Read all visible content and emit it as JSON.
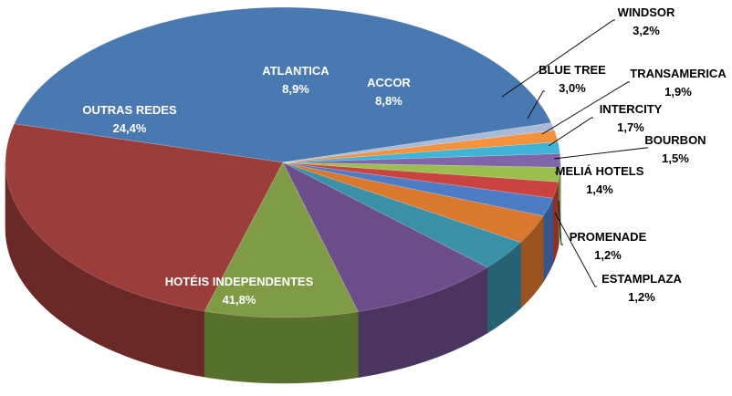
{
  "chart_data": {
    "type": "pie",
    "style": "3d-pie",
    "title": "",
    "slices": [
      {
        "label": "HOTÉIS INDEPENDENTES",
        "value_label": "41,8%",
        "value": 41.8,
        "color": "#4A78B0",
        "side": "#2C4A70",
        "label_pos": "inside"
      },
      {
        "label": "OUTRAS REDES",
        "value_label": "24,4%",
        "value": 24.4,
        "color": "#9B3D3A",
        "side": "#6A2927",
        "label_pos": "inside"
      },
      {
        "label": "ATLANTICA",
        "value_label": "8,9%",
        "value": 8.9,
        "color": "#7F9B45",
        "side": "#57702E",
        "label_pos": "inside"
      },
      {
        "label": "ACCOR",
        "value_label": "8,8%",
        "value": 8.8,
        "color": "#6B4E8A",
        "side": "#4A3561",
        "label_pos": "inside"
      },
      {
        "label": "WINDSOR",
        "value_label": "3,2%",
        "value": 3.2,
        "color": "#3A90A6",
        "side": "#276274",
        "label_pos": "outside"
      },
      {
        "label": "BLUE TREE",
        "value_label": "3,0%",
        "value": 3.0,
        "color": "#D9782F",
        "side": "#9A5320",
        "label_pos": "outside"
      },
      {
        "label": "TRANSAMERICA",
        "value_label": "1,9%",
        "value": 1.9,
        "color": "#4D7CC4",
        "side": "#34568A",
        "label_pos": "outside"
      },
      {
        "label": "INTERCITY",
        "value_label": "1,7%",
        "value": 1.7,
        "color": "#C94440",
        "side": "#8E2F2C",
        "label_pos": "outside"
      },
      {
        "label": "BOURBON",
        "value_label": "1,5%",
        "value": 1.5,
        "color": "#9BBE4F",
        "side": "#6E8A36",
        "label_pos": "outside"
      },
      {
        "label": "MELIÁ HOTELS",
        "value_label": "1,4%",
        "value": 1.4,
        "color": "#8066A8",
        "side": "#5A4878",
        "label_pos": "outside"
      },
      {
        "label": "PROMENADE",
        "value_label": "1,2%",
        "value": 1.2,
        "color": "#3FB4D6",
        "side": "#2B7F98",
        "label_pos": "outside"
      },
      {
        "label": "ESTAMPLAZA",
        "value_label": "1,2%",
        "value": 1.2,
        "color": "#F5923E",
        "side": "#B0662A",
        "label_pos": "outside"
      },
      {
        "label": "",
        "value_label": "",
        "value": 0.8,
        "color": "#A9BBD8",
        "side": "#7A8CA8",
        "label_pos": "none"
      }
    ],
    "legend": "none",
    "grid": false
  }
}
